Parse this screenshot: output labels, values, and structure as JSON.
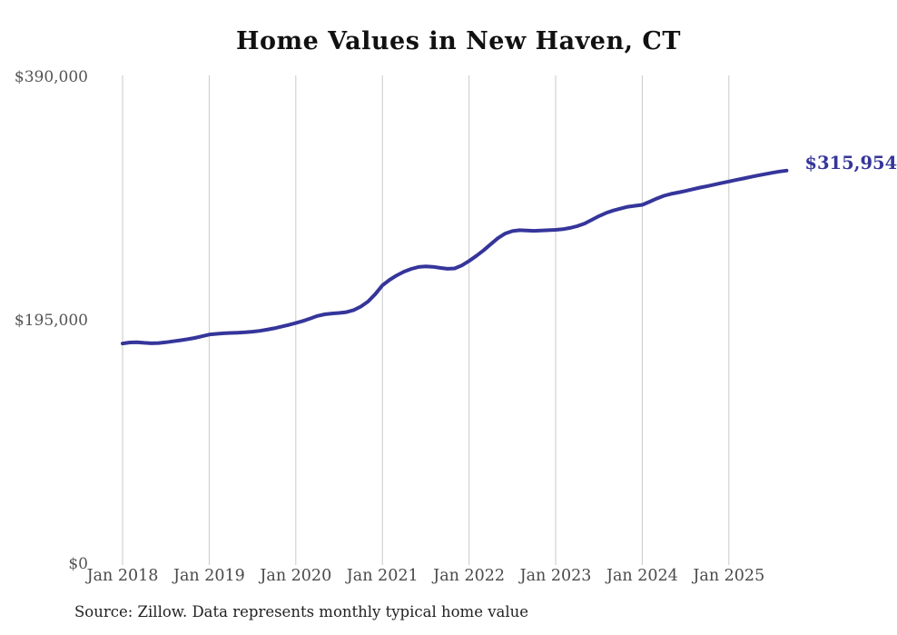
{
  "chart_data": {
    "type": "line",
    "title": "Home Values in New Haven, CT",
    "x_ticks": [
      "Jan 2018",
      "Jan 2019",
      "Jan 2020",
      "Jan 2021",
      "Jan 2022",
      "Jan 2023",
      "Jan 2024",
      "Jan 2025"
    ],
    "y_ticks": [
      "$390,000",
      "$195,000",
      "$0"
    ],
    "y_tick_values": [
      390000,
      195000,
      0
    ],
    "ylim": [
      0,
      390000
    ],
    "x_start": "2018-01",
    "x_end": "2025-09",
    "x_freq": "monthly",
    "grid": "vertical-only",
    "legend": "none",
    "series": [
      {
        "name": "Monthly typical home value",
        "values": [
          177500,
          178300,
          178500,
          178000,
          177600,
          177800,
          178400,
          179200,
          180000,
          180900,
          181900,
          183200,
          184600,
          185200,
          185600,
          185900,
          186100,
          186400,
          186900,
          187600,
          188500,
          189600,
          190900,
          192300,
          193800,
          195500,
          197500,
          199500,
          200800,
          201500,
          201900,
          202600,
          204200,
          207000,
          211000,
          217000,
          224000,
          228500,
          232000,
          235000,
          237200,
          238700,
          239200,
          238900,
          238000,
          237300,
          237600,
          240000,
          243500,
          247500,
          252000,
          257000,
          261800,
          265500,
          267500,
          268200,
          268000,
          267700,
          267900,
          268200,
          268500,
          269000,
          270000,
          271500,
          273500,
          276500,
          279500,
          282000,
          284000,
          285500,
          287000,
          287800,
          288500,
          291000,
          293500,
          295800,
          297300,
          298400,
          299600,
          301000,
          302300,
          303500,
          304700,
          306000,
          307200,
          308400,
          309600,
          310800,
          312000,
          313100,
          314200,
          315200,
          315954
        ]
      }
    ],
    "end_label": "$315,954",
    "end_value": 315954,
    "source": "Source: Zillow. Data represents monthly typical home value",
    "colors": {
      "line": "#35359B",
      "end_label": "#35359B",
      "title": "#111111",
      "axis_text": "#4a4a4c",
      "gridline": "#cacaca",
      "background": "#ffffff"
    }
  }
}
